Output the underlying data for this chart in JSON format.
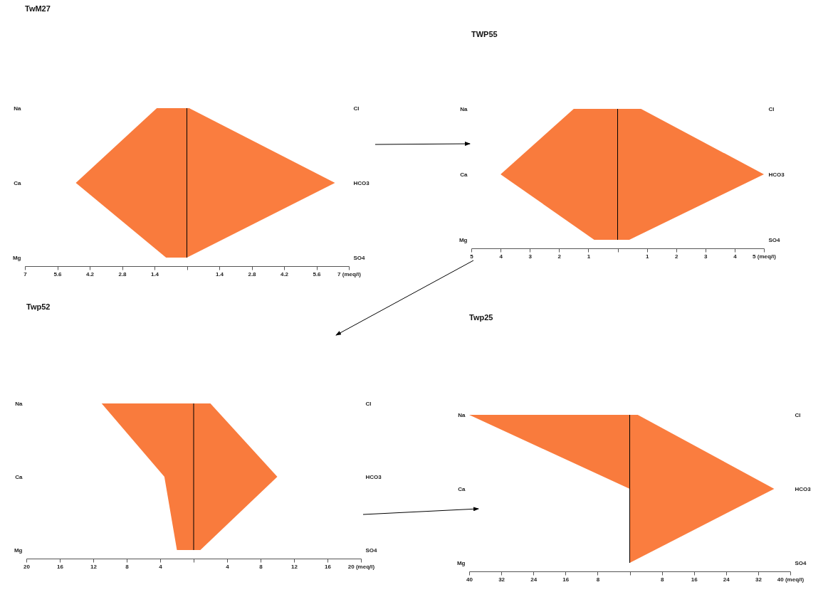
{
  "chart_data": [
    {
      "type": "area",
      "orientation": "horizontal",
      "title": "TwM27",
      "categories": [
        "Na",
        "Ca",
        "Mg"
      ],
      "y2_categories": [
        "Cl",
        "HCO3",
        "SO4"
      ],
      "series": [
        {
          "color": "#f97b3d",
          "values": [
            -1.3,
            -4.8,
            -0.9
          ]
        },
        {
          "color": "#fa7d3f",
          "axis": "y2",
          "values": [
            0.1,
            6.4,
            0
          ]
        }
      ],
      "xlim": [
        -7,
        7
      ],
      "xticks": [
        {
          "value": -7,
          "label": "7"
        },
        {
          "value": -5.6,
          "label": "5.6"
        },
        {
          "value": -4.2,
          "label": "4.2"
        },
        {
          "value": -2.8,
          "label": "2.8"
        },
        {
          "value": -1.4,
          "label": "1.4"
        },
        {
          "value": 0,
          "label": null
        },
        1.4,
        2.8,
        4.2,
        5.6,
        {
          "value": 7,
          "label": "7 (meq/l)"
        }
      ],
      "ref_lines": [
        {
          "axis": "x",
          "value": 0,
          "color": "#000000"
        }
      ]
    },
    {
      "type": "area",
      "orientation": "horizontal",
      "title": "TWP55",
      "categories": [
        "Na",
        "Ca",
        "Mg"
      ],
      "y2_categories": [
        "Cl",
        "HCO3",
        "SO4"
      ],
      "series": [
        {
          "color": "#f97b3d",
          "values": [
            -1.5,
            -4.0,
            -0.8
          ]
        },
        {
          "color": "#f97b3d",
          "axis": "y2",
          "values": [
            0.8,
            5.0,
            0.4
          ]
        }
      ],
      "xlim": [
        -5,
        5
      ],
      "xticks": [
        {
          "value": -5,
          "label": "5"
        },
        {
          "value": -4,
          "label": "4"
        },
        {
          "value": -3,
          "label": "3"
        },
        {
          "value": -2,
          "label": "2"
        },
        {
          "value": -1,
          "label": "1"
        },
        {
          "value": 0,
          "label": null
        },
        1,
        2,
        3,
        4,
        {
          "value": 5,
          "label": "5 (meq/l)"
        }
      ],
      "ref_lines": [
        {
          "axis": "x",
          "value": 0,
          "color": "#000000"
        }
      ]
    },
    {
      "type": "area",
      "orientation": "horizontal",
      "title": "Twp52",
      "categories": [
        "Na",
        "Ca",
        "Mg"
      ],
      "y2_categories": [
        "Cl",
        "HCO3",
        "SO4"
      ],
      "series": [
        {
          "color": "#f97b3d",
          "values": [
            -11,
            -3.5,
            -2
          ]
        },
        {
          "color": "#f97b3d",
          "axis": "y2",
          "values": [
            2,
            10,
            0.8
          ]
        }
      ],
      "xlim": [
        -20,
        20
      ],
      "xticks": [
        {
          "value": -20,
          "label": "20"
        },
        {
          "value": -16,
          "label": "16"
        },
        {
          "value": -12,
          "label": "12"
        },
        {
          "value": -8,
          "label": "8"
        },
        {
          "value": -4,
          "label": "4"
        },
        {
          "value": 0,
          "label": null
        },
        4,
        8,
        12,
        16,
        {
          "value": 20,
          "label": "20 (meq/l)"
        }
      ],
      "ref_lines": [
        {
          "axis": "x",
          "value": 0,
          "color": "#000000"
        }
      ]
    },
    {
      "type": "area",
      "orientation": "horizontal",
      "title": "Twp25",
      "categories": [
        "Na",
        "Ca",
        "Mg"
      ],
      "y2_categories": [
        "Cl",
        "HCO3",
        "SO4"
      ],
      "series": [
        {
          "color": "#f97b3d",
          "values": [
            -40,
            0,
            0
          ]
        },
        {
          "color": "#fa7d3f",
          "axis": "y2",
          "values": [
            2,
            36,
            0
          ]
        }
      ],
      "xlim": [
        -40,
        40
      ],
      "xticks": [
        {
          "value": -40,
          "label": "40"
        },
        {
          "value": -32,
          "label": "32"
        },
        {
          "value": -24,
          "label": "24"
        },
        {
          "value": -16,
          "label": "16"
        },
        {
          "value": -8,
          "label": "8"
        },
        {
          "value": 0,
          "label": null
        },
        8,
        16,
        24,
        32,
        {
          "value": 40,
          "label": "40 (meq/l)"
        }
      ],
      "ref_lines": [
        {
          "axis": "x",
          "value": 0,
          "color": "#000000"
        }
      ]
    }
  ]
}
